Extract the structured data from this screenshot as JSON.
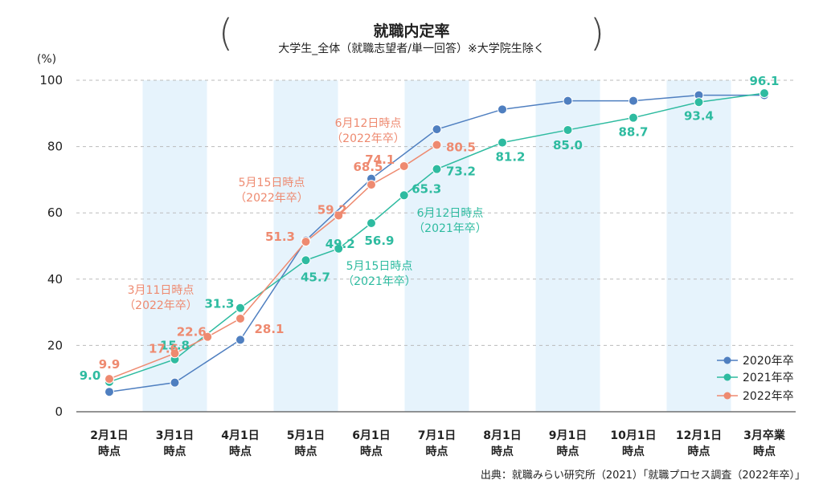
{
  "chart_data": {
    "type": "line",
    "title": "就職内定率",
    "subtitle": "大学生_全体（就職志望者/単一回答）※大学院生除く",
    "ylabel": "(%)",
    "ylim": [
      0,
      100
    ],
    "yticks": [
      "0",
      "20",
      "40",
      "60",
      "80",
      "100"
    ],
    "grid": true,
    "legend_position": "bottom-right",
    "categories": [
      "2月1日時点",
      "3月1日時点",
      "4月1日時点",
      "5月1日時点",
      "6月1日時点",
      "7月1日時点",
      "8月1日時点",
      "9月1日時点",
      "10月1日時点",
      "12月1日時点",
      "3月卒業時点"
    ],
    "category_lines": [
      [
        "2月1日",
        "時点"
      ],
      [
        "3月1日",
        "時点"
      ],
      [
        "4月1日",
        "時点"
      ],
      [
        "5月1日",
        "時点"
      ],
      [
        "6月1日",
        "時点"
      ],
      [
        "7月1日",
        "時点"
      ],
      [
        "8月1日",
        "時点"
      ],
      [
        "9月1日",
        "時点"
      ],
      [
        "10月1日",
        "時点"
      ],
      [
        "12月1日",
        "時点"
      ],
      [
        "3月卒業",
        "時点"
      ]
    ],
    "shaded_categories": [
      1,
      3,
      5,
      7,
      9
    ],
    "series": [
      {
        "name": "2020年卒",
        "color": "#4f7fc0",
        "points": [
          {
            "x": 0,
            "y": 6.0
          },
          {
            "x": 1,
            "y": 8.8
          },
          {
            "x": 2,
            "y": 21.7
          },
          {
            "x": 3,
            "y": 51.7
          },
          {
            "x": 4,
            "y": 70.3
          },
          {
            "x": 5,
            "y": 85.2
          },
          {
            "x": 6,
            "y": 91.2
          },
          {
            "x": 7,
            "y": 93.8
          },
          {
            "x": 8,
            "y": 93.8
          },
          {
            "x": 9,
            "y": 95.5
          },
          {
            "x": 10,
            "y": 95.5
          }
        ]
      },
      {
        "name": "2021年卒",
        "color": "#2ebba0",
        "points": [
          {
            "x": 0,
            "y": 9.0,
            "label": "9.0"
          },
          {
            "x": 1,
            "y": 15.8,
            "label": "15.8"
          },
          {
            "x": 2,
            "y": 31.3,
            "label": "31.3"
          },
          {
            "x": 3,
            "y": 45.7,
            "label": "45.7"
          },
          {
            "x": 3.5,
            "y": 49.2,
            "label": "49.2"
          },
          {
            "x": 4,
            "y": 56.9,
            "label": "56.9"
          },
          {
            "x": 4.5,
            "y": 65.3,
            "label": "65.3"
          },
          {
            "x": 5,
            "y": 73.2,
            "label": "73.2"
          },
          {
            "x": 6,
            "y": 81.2,
            "label": "81.2"
          },
          {
            "x": 7,
            "y": 85.0,
            "label": "85.0"
          },
          {
            "x": 8,
            "y": 88.7,
            "label": "88.7"
          },
          {
            "x": 9,
            "y": 93.4,
            "label": "93.4"
          },
          {
            "x": 10,
            "y": 96.1,
            "label": "96.1"
          }
        ]
      },
      {
        "name": "2022年卒",
        "color": "#ee8a70",
        "points": [
          {
            "x": 0,
            "y": 9.9,
            "label": "9.9"
          },
          {
            "x": 1,
            "y": 17.6,
            "label": "17.6"
          },
          {
            "x": 1.5,
            "y": 22.6,
            "label": "22.6"
          },
          {
            "x": 2,
            "y": 28.1,
            "label": "28.1"
          },
          {
            "x": 3,
            "y": 51.3,
            "label": "51.3"
          },
          {
            "x": 3.5,
            "y": 59.2,
            "label": "59.2"
          },
          {
            "x": 4,
            "y": 68.5,
            "label": "68.5"
          },
          {
            "x": 4.5,
            "y": 74.1,
            "label": "74.1"
          },
          {
            "x": 5,
            "y": 80.5,
            "label": "80.5"
          }
        ]
      }
    ],
    "annotations": [
      {
        "lines": [
          "3月11日時点",
          "（2022年卒）"
        ],
        "series": "2022年卒"
      },
      {
        "lines": [
          "5月15日時点",
          "（2022年卒）"
        ],
        "series": "2022年卒"
      },
      {
        "lines": [
          "6月12日時点",
          "（2022年卒）"
        ],
        "series": "2022年卒"
      },
      {
        "lines": [
          "5月15日時点",
          "（2021年卒）"
        ],
        "series": "2021年卒"
      },
      {
        "lines": [
          "6月12日時点",
          "（2021年卒）"
        ],
        "series": "2021年卒"
      }
    ]
  },
  "source": "出典：就職みらい研究所（2021）「就職プロセス調査（2022年卒）」"
}
